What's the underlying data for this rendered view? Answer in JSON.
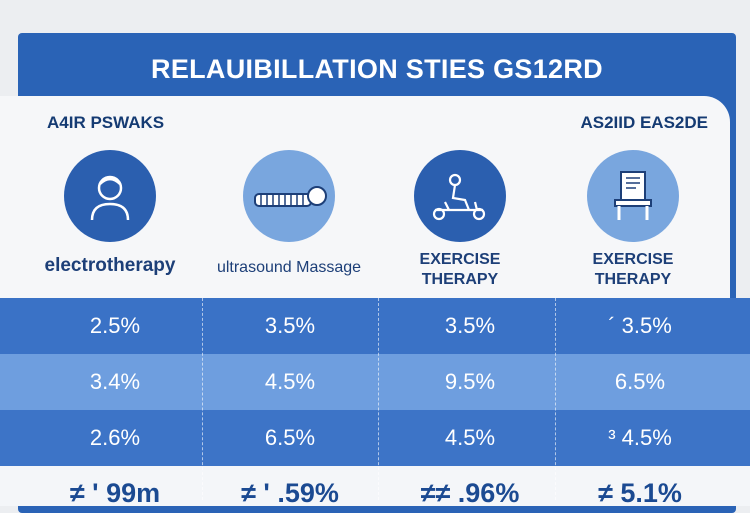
{
  "title": "RELAUIBILLATION STIES GS12RD",
  "header": {
    "left": "A4IR PSWAKS",
    "right": "AS2IID EAS2DE"
  },
  "categories": [
    {
      "label": "electrotherapy",
      "icon": "person-icon"
    },
    {
      "label": "ultrasound Massage",
      "icon": "massage-table-icon"
    },
    {
      "label": "EXERCISE THERAPY",
      "icon": "exercise-bike-icon"
    },
    {
      "label": "EXERCISE THERAPY",
      "icon": "exercise-machine-icon"
    }
  ],
  "rows": [
    [
      "2.5%",
      "3.5%",
      "3.5%",
      "´ 3.5%"
    ],
    [
      "3.4%",
      "4.5%",
      "9.5%",
      "6.5%"
    ],
    [
      "2.6%",
      "6.5%",
      "4.5%",
      "³ 4.5%"
    ]
  ],
  "totals": [
    "≠ ' 99m",
    "≠ ' .59%",
    "≠≠ .96%",
    "≠ 5.1%"
  ],
  "colors": {
    "primary": "#2a63b6",
    "row_dark": "#3a72c6",
    "row_light": "#6e9edf",
    "text_dark": "#1d3f78"
  }
}
